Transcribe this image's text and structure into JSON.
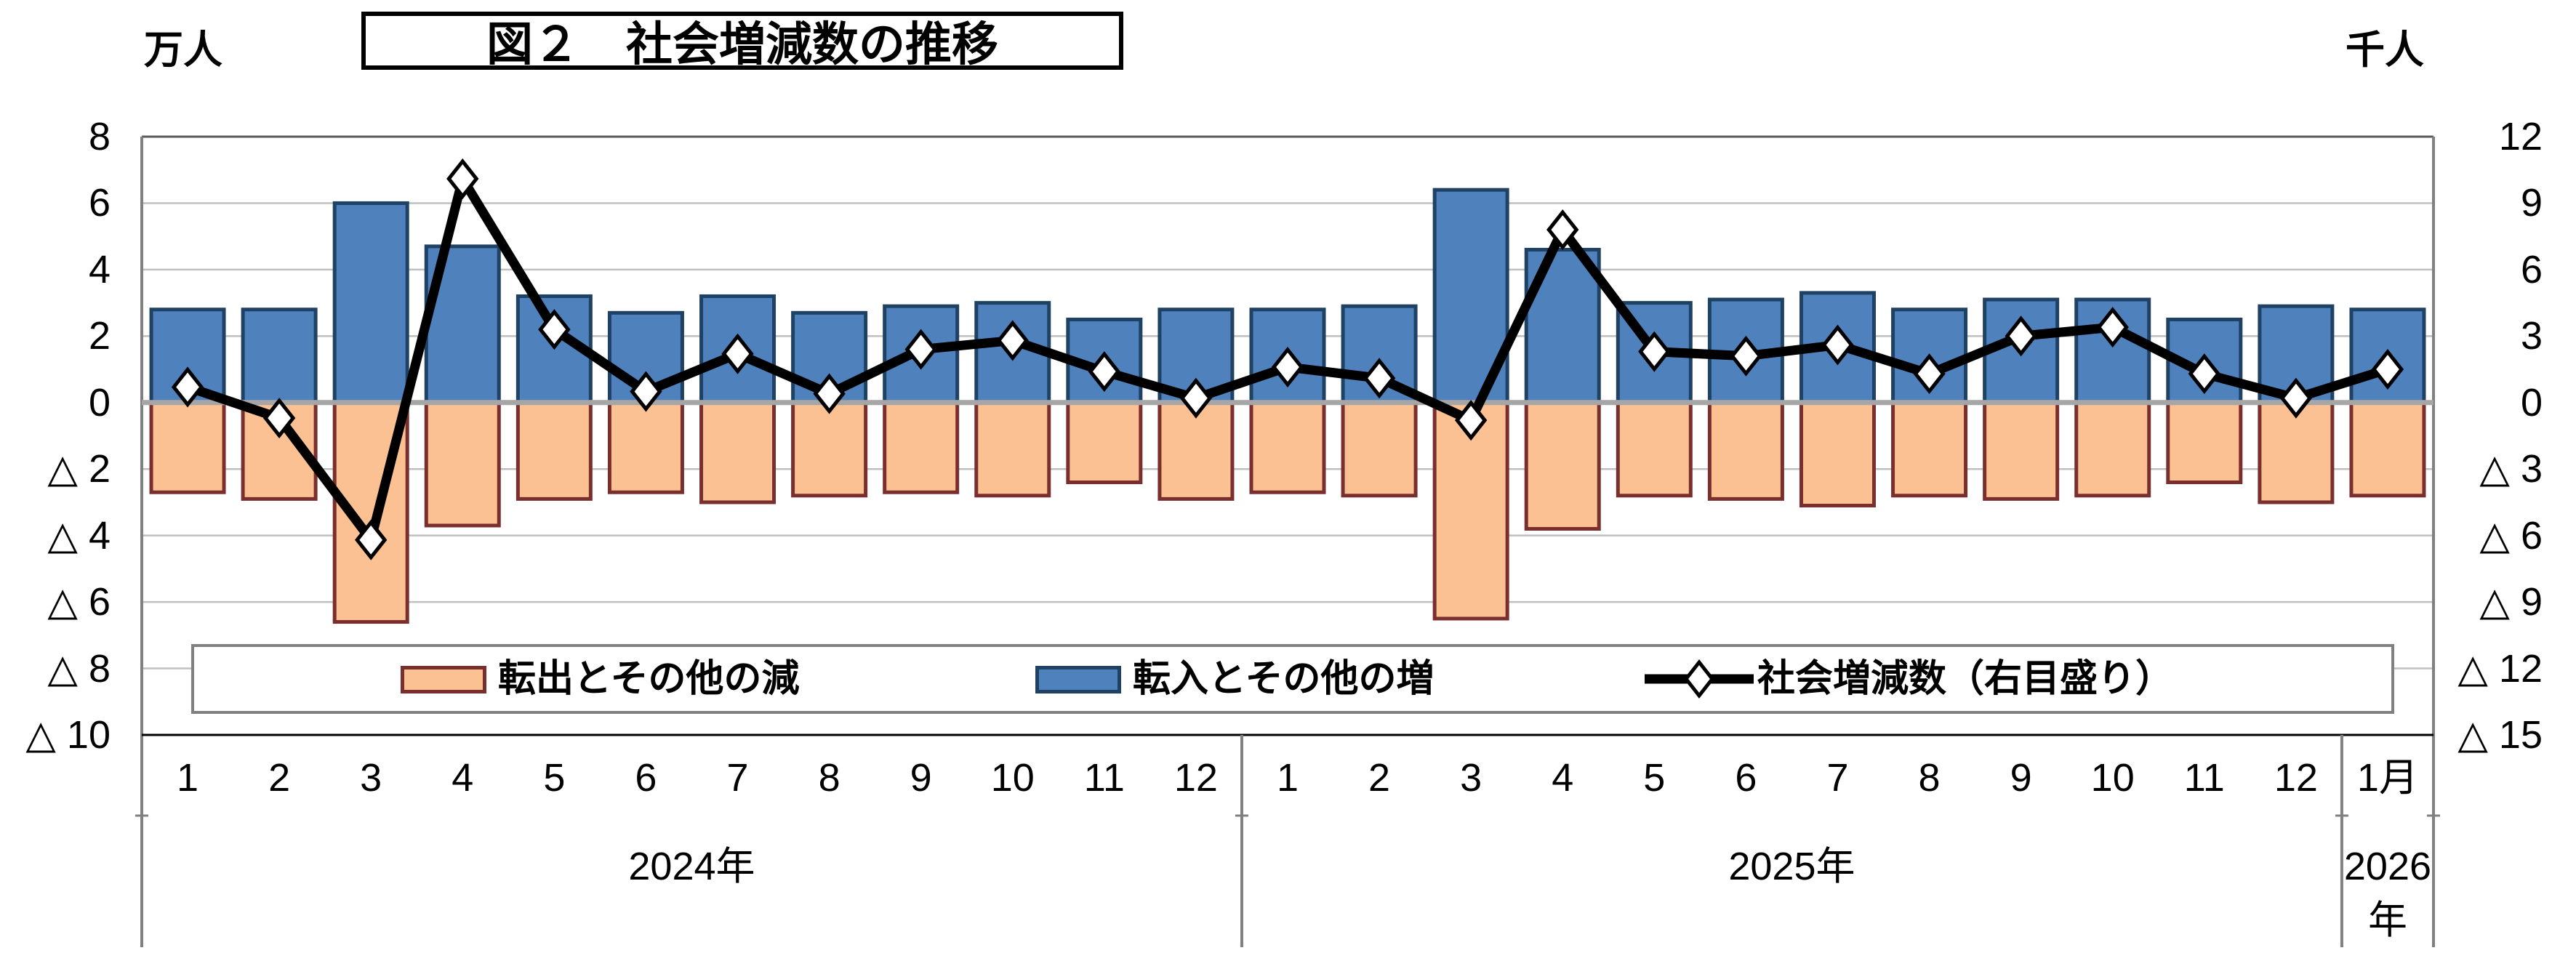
{
  "title": "図２　社会増減数の推移",
  "axis_left": {
    "unit": "万人",
    "max": 8,
    "min": -10,
    "step": 2,
    "values": [
      8,
      6,
      4,
      2,
      0,
      -2,
      -4,
      -6,
      -8,
      -10
    ],
    "labels": [
      "8",
      "6",
      "4",
      "2",
      "0",
      "△ 2",
      "△ 4",
      "△ 6",
      "△ 8",
      "△ 10"
    ]
  },
  "axis_right": {
    "unit": "千人",
    "max": 12,
    "min": -15,
    "step": 3,
    "values": [
      12,
      9,
      6,
      3,
      0,
      -3,
      -6,
      -9,
      -12,
      -15
    ],
    "labels": [
      "12",
      "9",
      "6",
      "3",
      "0",
      "△ 3",
      "△ 6",
      "△ 9",
      "△ 12",
      "△ 15"
    ]
  },
  "legend": {
    "out_label": "転出とその他の減",
    "in_label": "転入とその他の増",
    "net_label": "社会増減数（右目盛り）"
  },
  "colors": {
    "bar_in_fill": "#4F81BD",
    "bar_in_border": "#1F4163",
    "bar_out_fill": "#FBC192",
    "bar_out_border": "#7A2F2F",
    "net_line": "#000000",
    "marker_fill": "#FFFFFF",
    "zero_line": "#A6A6A6",
    "gridline": "#BFBFBF",
    "frame": "#808080",
    "axis_bottom": "#000000"
  },
  "years": [
    {
      "label": "2024年",
      "months": [
        "1",
        "2",
        "3",
        "4",
        "5",
        "6",
        "7",
        "8",
        "9",
        "10",
        "11",
        "12"
      ]
    },
    {
      "label": "2025年",
      "months": [
        "1",
        "2",
        "3",
        "4",
        "5",
        "6",
        "7",
        "8",
        "9",
        "10",
        "11",
        "12"
      ]
    },
    {
      "label": "2026年",
      "label_lines": [
        "2026",
        "年"
      ],
      "months": [
        "1月"
      ]
    }
  ],
  "chart_data": {
    "type": "bar",
    "subtype": "combo-stacked-bar-line",
    "title": "図２　社会増減数の推移",
    "categories": [
      "2024-1",
      "2024-2",
      "2024-3",
      "2024-4",
      "2024-5",
      "2024-6",
      "2024-7",
      "2024-8",
      "2024-9",
      "2024-10",
      "2024-11",
      "2024-12",
      "2025-1",
      "2025-2",
      "2025-3",
      "2025-4",
      "2025-5",
      "2025-6",
      "2025-7",
      "2025-8",
      "2025-9",
      "2025-10",
      "2025-11",
      "2025-12",
      "2026-1"
    ],
    "series": [
      {
        "name": "転入とその他の増",
        "type": "bar",
        "axis": "left",
        "unit": "万人",
        "direction": "positive",
        "values": [
          2.8,
          2.8,
          6.0,
          4.7,
          3.2,
          2.7,
          3.2,
          2.7,
          2.9,
          3.0,
          2.5,
          2.8,
          2.8,
          2.9,
          6.4,
          4.6,
          3.0,
          3.1,
          3.3,
          2.8,
          3.1,
          3.1,
          2.5,
          2.9,
          2.8
        ]
      },
      {
        "name": "転出とその他の減",
        "type": "bar",
        "axis": "left",
        "unit": "万人",
        "direction": "negative",
        "values": [
          2.7,
          2.9,
          6.6,
          3.7,
          2.9,
          2.7,
          3.0,
          2.8,
          2.7,
          2.8,
          2.4,
          2.9,
          2.7,
          2.8,
          6.5,
          3.8,
          2.8,
          2.9,
          3.1,
          2.8,
          2.9,
          2.8,
          2.4,
          3.0,
          2.8
        ]
      },
      {
        "name": "社会増減数（右目盛り）",
        "type": "line",
        "axis": "right",
        "unit": "千人",
        "values": [
          0.7,
          -0.7,
          -6.2,
          10.1,
          3.3,
          0.5,
          2.2,
          0.4,
          2.4,
          2.8,
          1.4,
          0.2,
          1.6,
          1.1,
          -0.8,
          7.8,
          2.3,
          2.1,
          2.6,
          1.3,
          3.0,
          3.4,
          1.3,
          0.2,
          1.5
        ]
      }
    ],
    "left_axis_range": [
      -10,
      8
    ],
    "right_axis_range": [
      -15,
      12
    ],
    "grid": true,
    "legend_position": "bottom-box"
  }
}
